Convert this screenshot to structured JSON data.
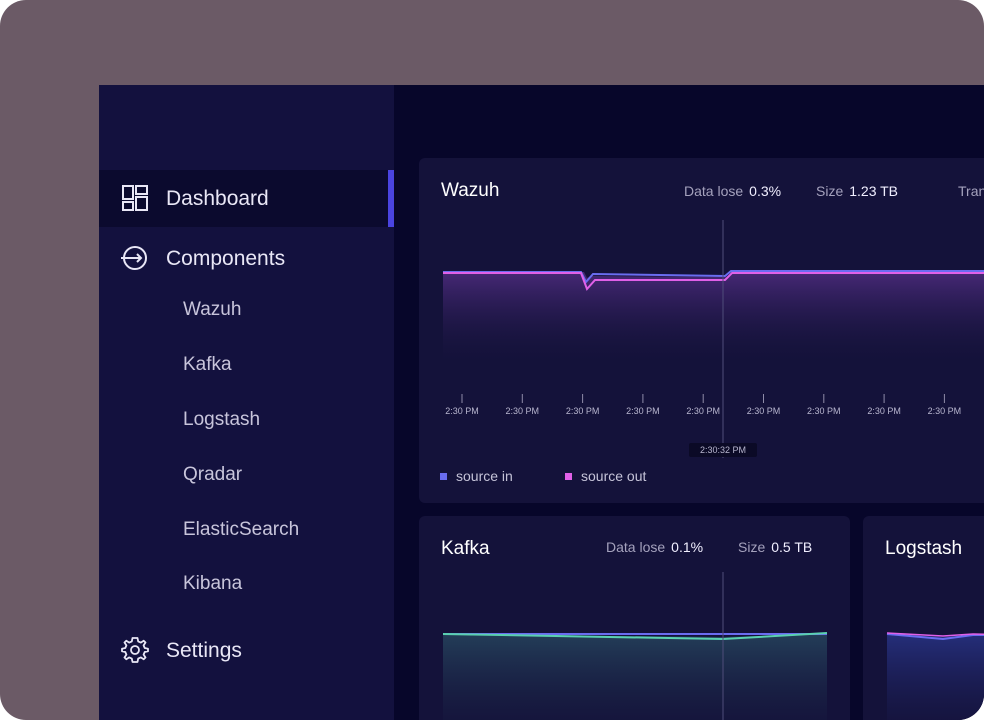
{
  "sidebar": {
    "dashboard_label": "Dashboard",
    "components_label": "Components",
    "components_items": [
      "Wazuh",
      "Kafka",
      "Logstash",
      "Qradar",
      "ElasticSearch",
      "Kibana"
    ],
    "settings_label": "Settings"
  },
  "wazuh_card": {
    "title": "Wazuh",
    "data_lose_label": "Data lose",
    "data_lose_value": "0.3%",
    "size_label": "Size",
    "size_value": "1.23 TB",
    "extra_label": "Tran",
    "tick_labels": [
      "2:30 PM",
      "2:30 PM",
      "2:30 PM",
      "2:30 PM",
      "2:30 PM",
      "2:30 PM",
      "2:30 PM",
      "2:30 PM",
      "2:30 PM"
    ],
    "cursor_label": "2:30:32 PM",
    "legend": {
      "source_in": "source in",
      "source_out": "source out"
    }
  },
  "kafka_card": {
    "title": "Kafka",
    "data_lose_label": "Data lose",
    "data_lose_value": "0.1%",
    "size_label": "Size",
    "size_value": "0.5 TB"
  },
  "logstash_card": {
    "title": "Logstash"
  },
  "colors": {
    "source_in": "#6a6cf0",
    "source_out": "#e060e8",
    "accent": "#4a44e0",
    "kafka_line": "#5ad1b0"
  },
  "chart_data": [
    {
      "type": "area",
      "title": "Wazuh",
      "categories": [
        "2:30 PM",
        "2:30 PM",
        "2:30 PM",
        "2:30 PM",
        "2:30 PM",
        "2:30 PM",
        "2:30 PM",
        "2:30 PM",
        "2:30 PM"
      ],
      "series": [
        {
          "name": "source in",
          "values": [
            0.82,
            0.82,
            0.8,
            0.8,
            0.8,
            0.82,
            0.82,
            0.82,
            0.82
          ]
        },
        {
          "name": "source out",
          "values": [
            0.82,
            0.82,
            0.76,
            0.76,
            0.76,
            0.81,
            0.81,
            0.81,
            0.81
          ]
        }
      ],
      "cursor": "2:30:32 PM"
    },
    {
      "type": "area",
      "title": "Kafka",
      "series": [
        {
          "name": "source in",
          "values": [
            0.7,
            0.7,
            0.7,
            0.7
          ]
        },
        {
          "name": "source out",
          "values": [
            0.7,
            0.69,
            0.66,
            0.7
          ]
        }
      ]
    }
  ]
}
